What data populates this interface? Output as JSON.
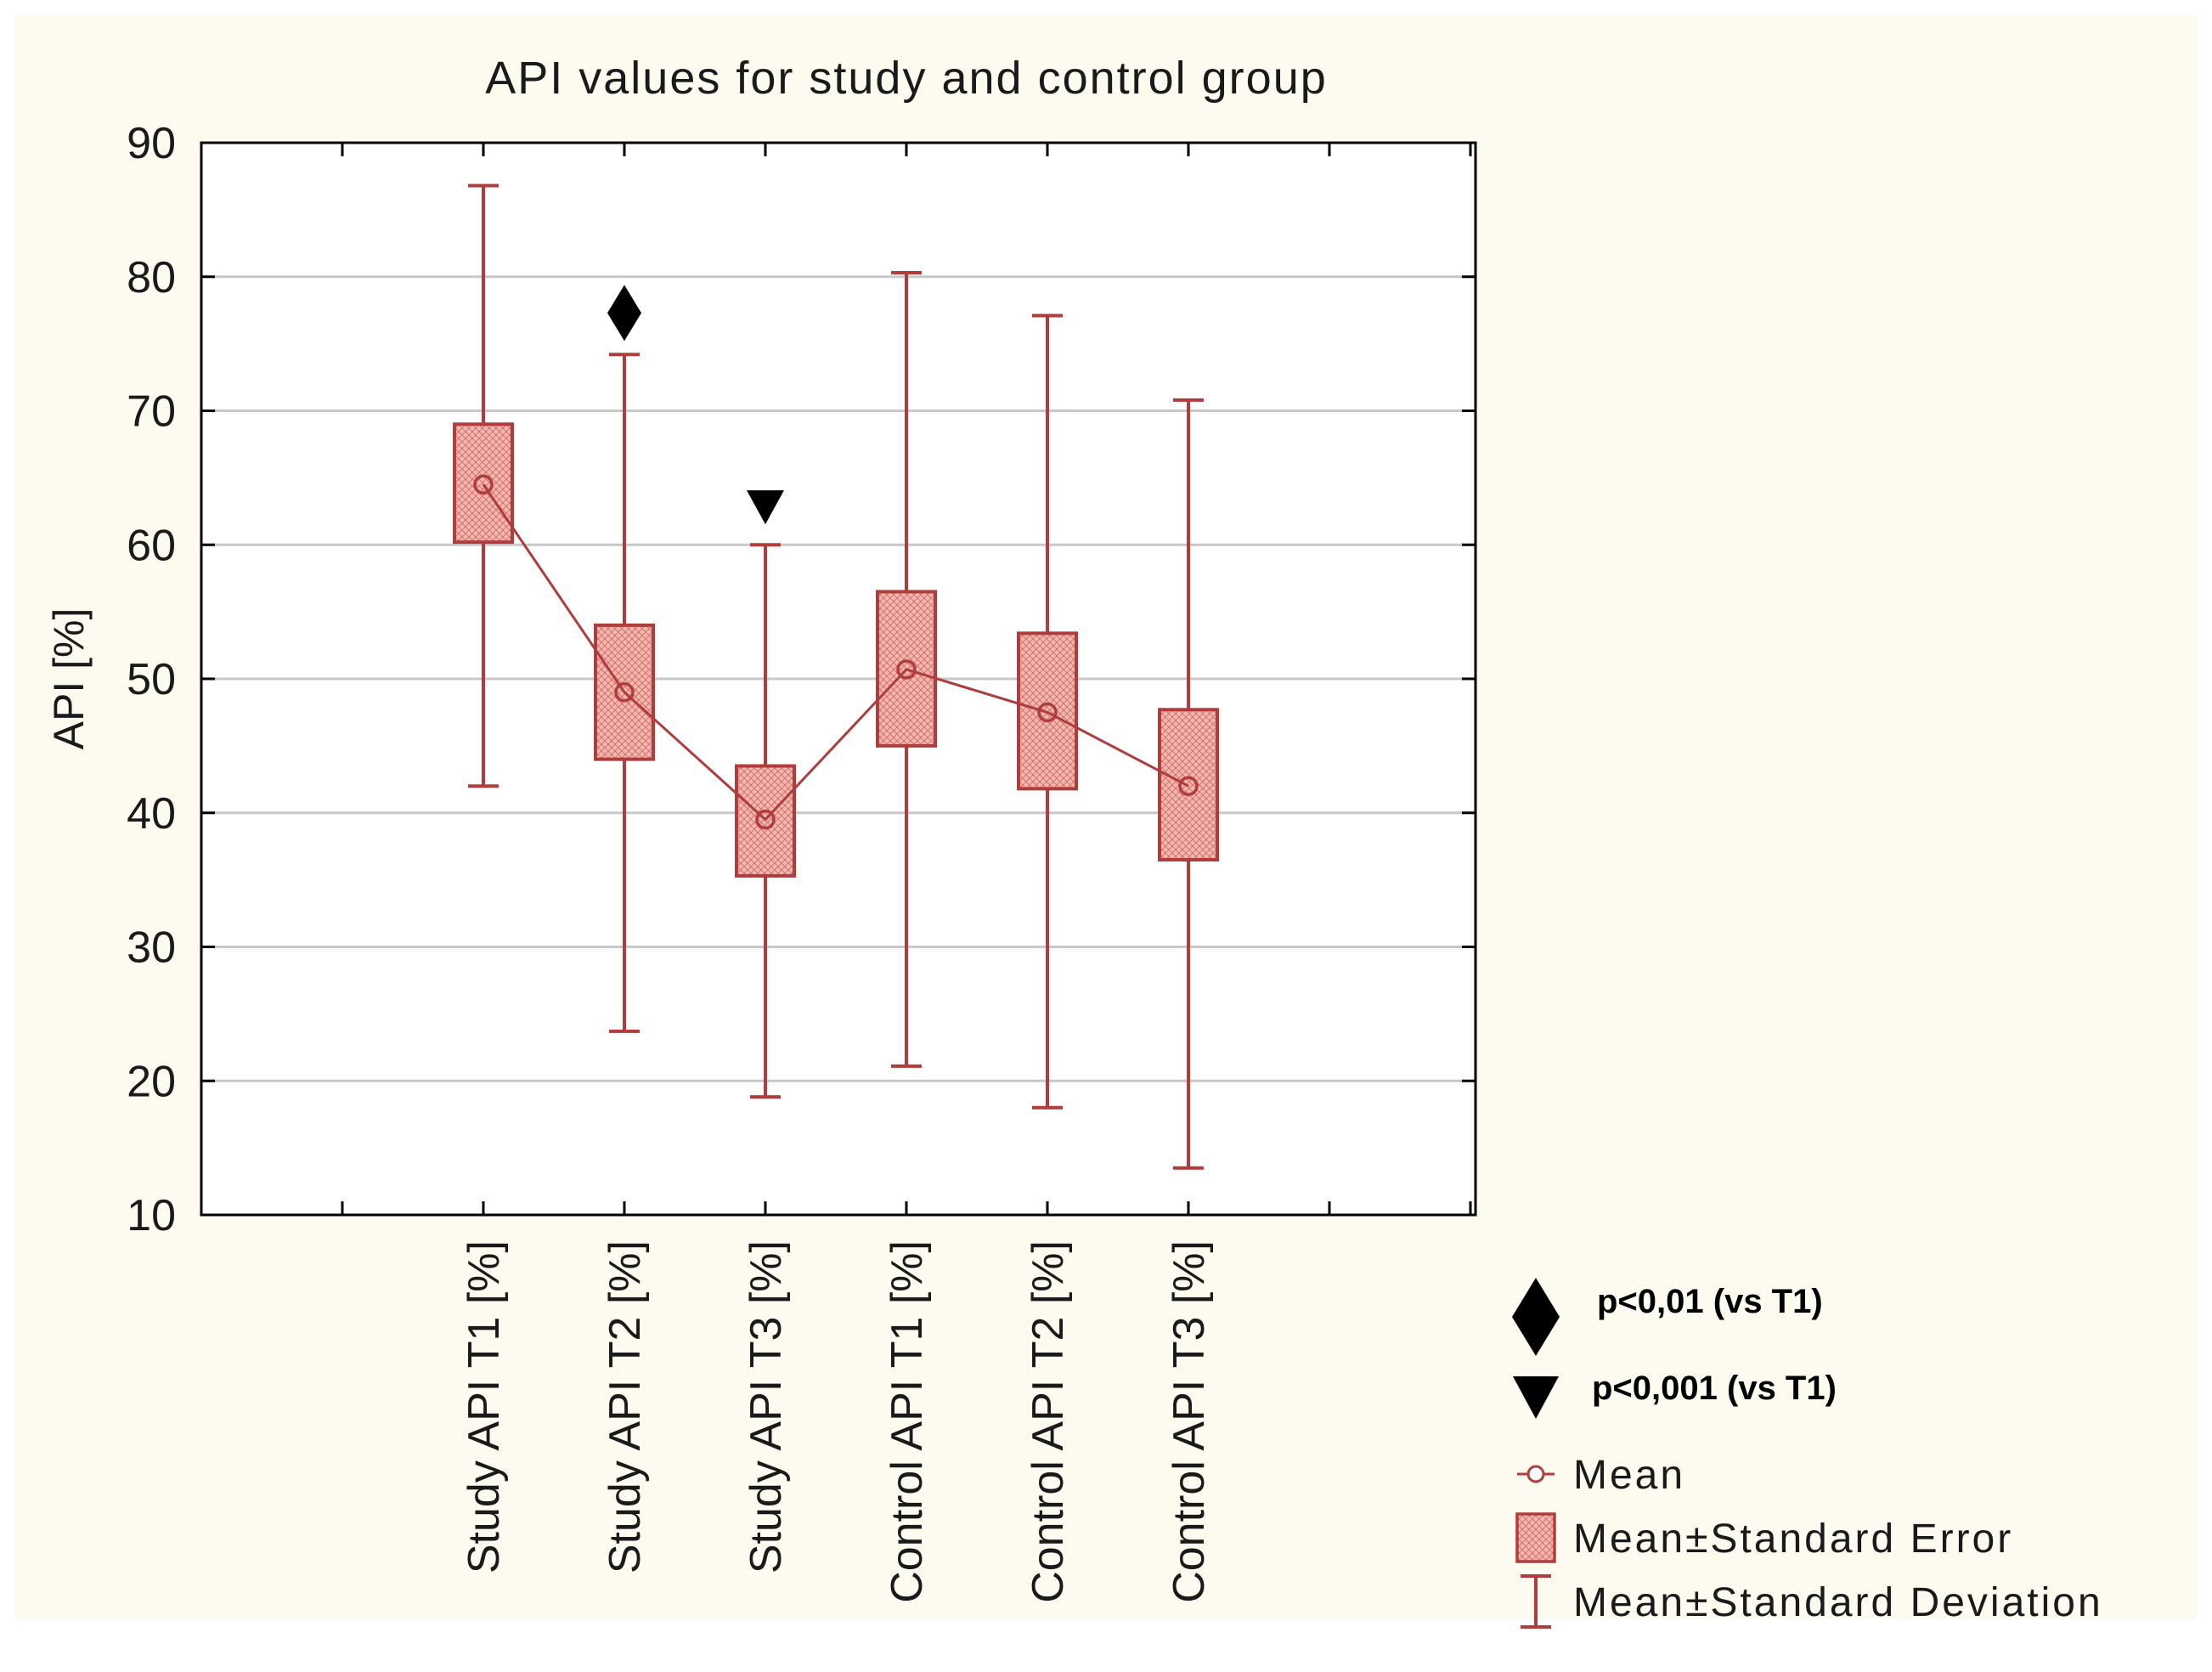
{
  "chart_data": {
    "type": "box",
    "title": "API values for study and control group",
    "ylabel": "API [%]",
    "xlabel": "",
    "ylim": [
      10,
      90
    ],
    "yticks": [
      10,
      20,
      30,
      40,
      50,
      60,
      70,
      80,
      90
    ],
    "grid": true,
    "categories": [
      "Study API T1 [%]",
      "Study API T2 [%]",
      "Study API T3 [%]",
      "Control API T1 [%]",
      "Control API T2 [%]",
      "Control API T3 [%]"
    ],
    "series": [
      {
        "name": "Mean",
        "values": [
          64.5,
          49.0,
          39.5,
          50.7,
          47.5,
          42.0
        ]
      },
      {
        "name": "Mean±Standard Error",
        "low": [
          60.2,
          44.0,
          35.3,
          45.0,
          41.8,
          36.5
        ],
        "high": [
          69.0,
          54.0,
          43.5,
          56.5,
          53.4,
          47.7
        ]
      },
      {
        "name": "Mean±Standard Deviation",
        "low": [
          42.0,
          23.7,
          18.8,
          21.1,
          18.0,
          13.5
        ],
        "high": [
          86.8,
          74.2,
          60.0,
          80.3,
          77.1,
          70.8
        ]
      }
    ],
    "significance_markers": [
      {
        "category_index": 1,
        "symbol": "diamond",
        "y": 77.3
      },
      {
        "category_index": 2,
        "symbol": "triangle-down",
        "y": 62.8
      }
    ],
    "legend": {
      "placement": "bottom-right",
      "items": [
        {
          "symbol": "diamond",
          "label": "p<0,01 (vs T1)"
        },
        {
          "symbol": "triangle-down",
          "label": "p<0,001 (vs T1)"
        },
        {
          "symbol": "mean",
          "label": "Mean"
        },
        {
          "symbol": "box",
          "label": "Mean±Standard Error"
        },
        {
          "symbol": "whisker",
          "label": "Mean±Standard Deviation"
        }
      ]
    },
    "colors": {
      "background": "#fdfaf0",
      "plot_background": "#ffffff",
      "series_line": "#b03c3c",
      "box_fill": "#f2b8b0",
      "box_hatch": "#c05050",
      "grid": "#c8c8c8",
      "axis": "#000000",
      "text": "#1a1a1a"
    }
  }
}
